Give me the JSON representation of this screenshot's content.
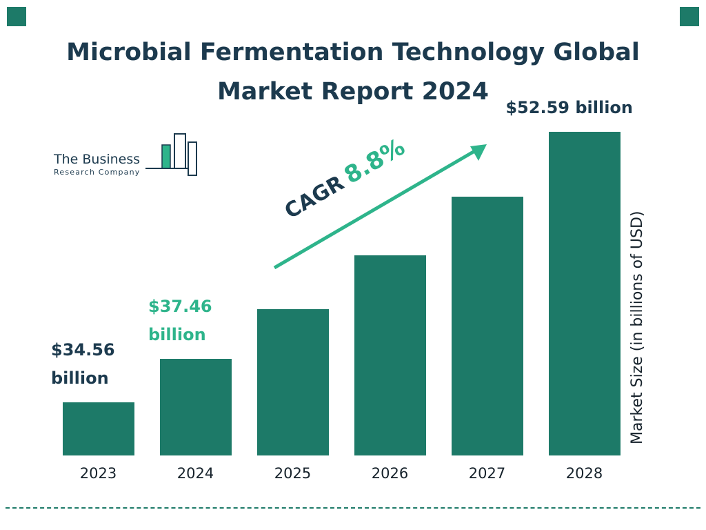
{
  "header": {
    "title_line1": "Microbial Fermentation Technology Global",
    "title_line2": "Market Report 2024"
  },
  "logo": {
    "line1": "The Business",
    "line2": "Research Company"
  },
  "colors": {
    "bar": "#1d7a68",
    "navy": "#1c3a4e",
    "accent_green": "#2eb48b"
  },
  "chart_data": {
    "type": "bar",
    "title": "Microbial Fermentation Technology Global Market Report 2024",
    "categories": [
      "2023",
      "2024",
      "2025",
      "2026",
      "2027",
      "2028"
    ],
    "values": [
      34.56,
      37.46,
      40.76,
      44.35,
      48.25,
      52.59
    ],
    "xlabel": "",
    "ylabel": "Market Size (in billions of USD)",
    "ylim": [
      31,
      54
    ],
    "grid": false,
    "legend": "none",
    "cagr_label": {
      "prefix": "CAGR",
      "value": "8.8%"
    },
    "annotations": [
      {
        "bar": 0,
        "lines": [
          "$34.56",
          "billion"
        ],
        "color": "#1c3a4e",
        "side": "left"
      },
      {
        "bar": 1,
        "lines": [
          "$37.46",
          "billion"
        ],
        "color": "#2eb48b",
        "side": "left"
      },
      {
        "bar": 5,
        "lines": [
          "$52.59 billion"
        ],
        "color": "#1c3a4e",
        "side": "right"
      }
    ]
  }
}
